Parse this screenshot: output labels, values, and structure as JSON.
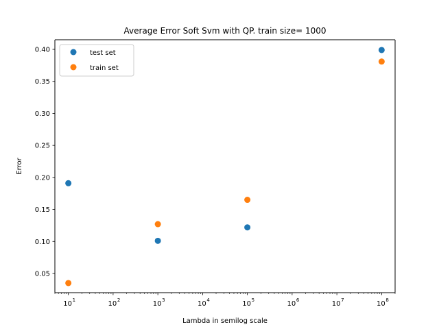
{
  "chart_data": {
    "type": "scatter",
    "title": "Average Error Soft Svm with QP. train size= 1000",
    "xlabel": "Lambda in semilog scale",
    "ylabel": "Error",
    "xscale": "log",
    "xlim": [
      5,
      200000000
    ],
    "ylim": [
      0.02,
      0.415
    ],
    "xticks": [
      {
        "value": 10,
        "base": "10",
        "exp": "1"
      },
      {
        "value": 100,
        "base": "10",
        "exp": "2"
      },
      {
        "value": 1000,
        "base": "10",
        "exp": "3"
      },
      {
        "value": 10000,
        "base": "10",
        "exp": "4"
      },
      {
        "value": 100000,
        "base": "10",
        "exp": "5"
      },
      {
        "value": 1000000,
        "base": "10",
        "exp": "6"
      },
      {
        "value": 10000000,
        "base": "10",
        "exp": "7"
      },
      {
        "value": 100000000,
        "base": "10",
        "exp": "8"
      }
    ],
    "yticks": [
      {
        "value": 0.05,
        "label": "0.05"
      },
      {
        "value": 0.1,
        "label": "0.10"
      },
      {
        "value": 0.15,
        "label": "0.15"
      },
      {
        "value": 0.2,
        "label": "0.20"
      },
      {
        "value": 0.25,
        "label": "0.25"
      },
      {
        "value": 0.3,
        "label": "0.30"
      },
      {
        "value": 0.35,
        "label": "0.35"
      },
      {
        "value": 0.4,
        "label": "0.40"
      }
    ],
    "legend_position": "top-left",
    "grid": false,
    "series": [
      {
        "name": "test set",
        "color": "#1f77b4",
        "x": [
          10,
          1000,
          100000,
          100000000
        ],
        "y": [
          0.191,
          0.101,
          0.122,
          0.399
        ]
      },
      {
        "name": "train set",
        "color": "#ff7f0e",
        "x": [
          10,
          1000,
          100000,
          100000000
        ],
        "y": [
          0.035,
          0.127,
          0.165,
          0.381
        ]
      }
    ]
  }
}
